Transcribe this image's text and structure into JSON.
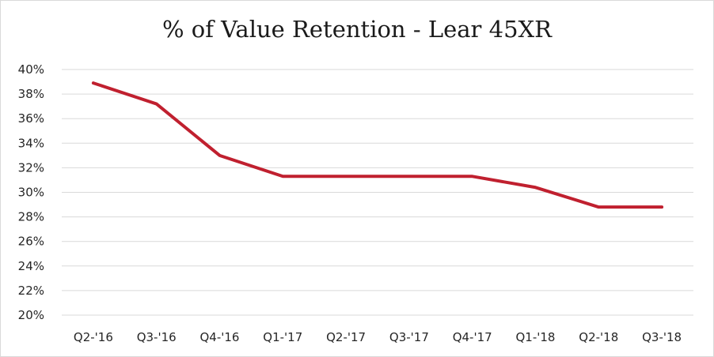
{
  "chart_data": {
    "type": "line",
    "title": "% of Value Retention - Lear 45XR",
    "xlabel": "",
    "ylabel": "",
    "categories": [
      "Q2-'16",
      "Q3-'16",
      "Q4-'16",
      "Q1-'17",
      "Q2-'17",
      "Q3-'17",
      "Q4-'17",
      "Q1-'18",
      "Q2-'18",
      "Q3-'18"
    ],
    "series": [
      {
        "values": [
          0.389,
          0.372,
          0.33,
          0.313,
          0.313,
          0.313,
          0.313,
          0.304,
          0.288,
          0.288
        ],
        "color": "#c0202f"
      }
    ],
    "ylim": [
      0.2,
      0.4
    ],
    "yticks": [
      0.2,
      0.22,
      0.24,
      0.26,
      0.28,
      0.3,
      0.32,
      0.34,
      0.36,
      0.38,
      0.4
    ],
    "ytick_labels": [
      "20%",
      "22%",
      "24%",
      "26%",
      "28%",
      "30%",
      "32%",
      "34%",
      "36%",
      "38%",
      "40%"
    ],
    "grid": true,
    "legend": "none",
    "gridline_color": "#d9d9d9"
  }
}
